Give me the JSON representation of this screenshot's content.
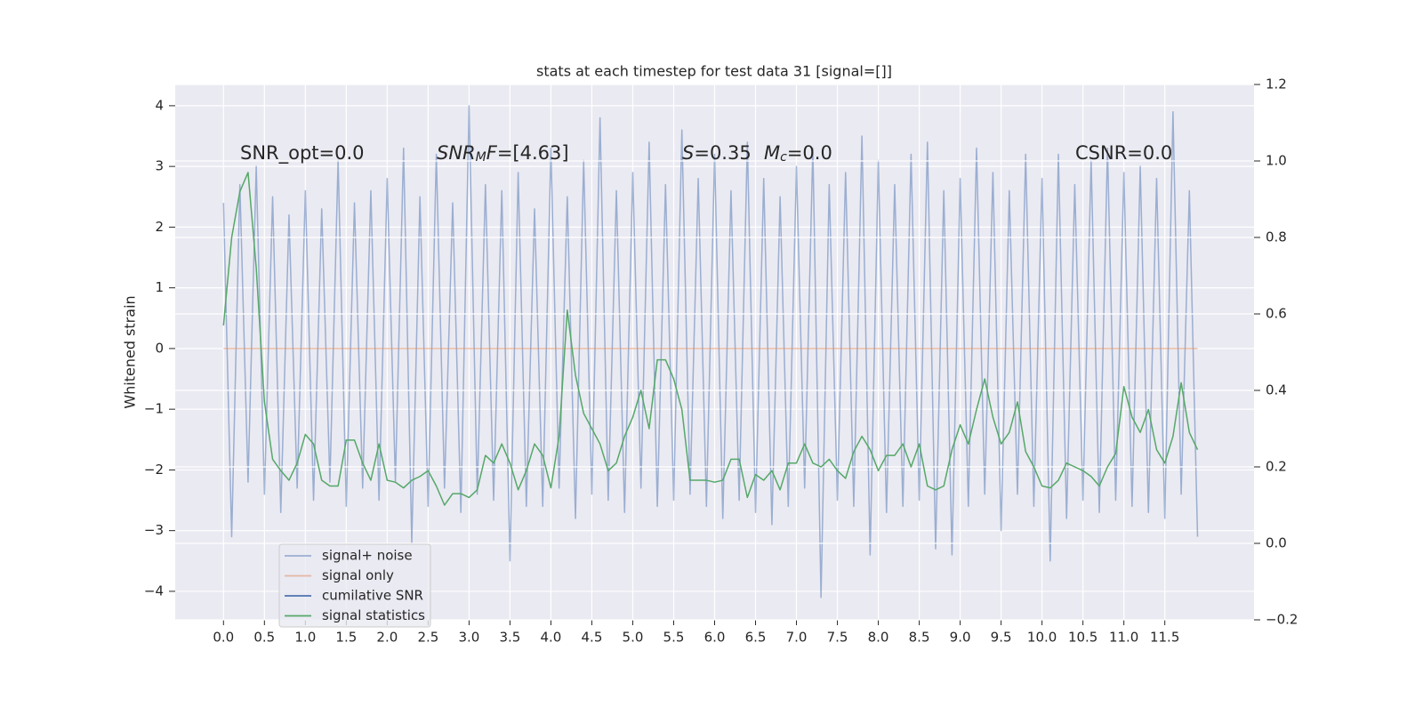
{
  "chart_data": {
    "type": "line",
    "title": "stats at each timestep for test data 31 [signal=[]]",
    "y_label": "Whitened strain",
    "annotations": [
      {
        "parts": [
          {
            "text": "SNR_opt=0.0"
          }
        ]
      },
      {
        "parts": [
          {
            "text": "SNR",
            "italic": true
          },
          {
            "text": "M",
            "italic": true,
            "sub": true
          },
          {
            "text": "F",
            "italic": true
          },
          {
            "text": "=[4.63]"
          }
        ]
      },
      {
        "parts": [
          {
            "text": "S",
            "italic": true
          },
          {
            "text": "=0.35"
          }
        ]
      },
      {
        "parts": [
          {
            "text": "M",
            "italic": true
          },
          {
            "text": "c",
            "italic": true,
            "sub": true
          },
          {
            "text": "=0.0"
          }
        ]
      },
      {
        "parts": [
          {
            "text": "CSNR=0.0"
          }
        ]
      }
    ],
    "x": [
      0,
      0.1,
      0.2,
      0.3,
      0.4,
      0.5,
      0.6,
      0.7,
      0.8,
      0.9,
      1,
      1.1,
      1.2,
      1.3,
      1.4,
      1.5,
      1.6,
      1.7,
      1.8,
      1.9,
      2,
      2.1,
      2.2,
      2.3,
      2.4,
      2.5,
      2.6,
      2.7,
      2.8,
      2.9,
      3,
      3.1,
      3.2,
      3.3,
      3.4,
      3.5,
      3.6,
      3.7,
      3.8,
      3.9,
      4,
      4.1,
      4.2,
      4.3,
      4.4,
      4.5,
      4.6,
      4.7,
      4.8,
      4.9,
      5,
      5.1,
      5.2,
      5.3,
      5.4,
      5.5,
      5.6,
      5.7,
      5.8,
      5.9,
      6,
      6.1,
      6.2,
      6.3,
      6.4,
      6.5,
      6.6,
      6.7,
      6.8,
      6.9,
      7,
      7.1,
      7.2,
      7.3,
      7.4,
      7.5,
      7.6,
      7.7,
      7.8,
      7.9,
      8,
      8.1,
      8.2,
      8.3,
      8.4,
      8.5,
      8.6,
      8.7,
      8.8,
      8.9,
      9,
      9.1,
      9.2,
      9.3,
      9.4,
      9.5,
      9.6,
      9.7,
      9.8,
      9.9,
      10,
      10.1,
      10.2,
      10.3,
      10.4,
      10.5,
      10.6,
      10.7,
      10.8,
      10.9,
      11,
      11.1,
      11.2,
      11.3,
      11.4,
      11.5,
      11.6,
      11.7,
      11.8,
      11.9
    ],
    "series": [
      {
        "name": "signal+ noise",
        "color": "#4c72b0",
        "opacity": 0.5,
        "values": [
          2.4,
          -3.1,
          2.7,
          -2.2,
          3.0,
          -2.4,
          2.5,
          -2.7,
          2.2,
          -2.3,
          2.6,
          -2.5,
          2.3,
          -2.2,
          3.1,
          -2.6,
          2.4,
          -2.3,
          2.6,
          -2.5,
          2.8,
          -2.2,
          3.3,
          -3.2,
          2.5,
          -2.6,
          3.2,
          -2.3,
          2.4,
          -2.7,
          4.0,
          -2.4,
          2.7,
          -2.5,
          2.6,
          -3.5,
          2.9,
          -2.6,
          2.3,
          -2.6,
          3.3,
          -2.3,
          2.5,
          -2.8,
          3.1,
          -2.4,
          3.8,
          -2.5,
          2.6,
          -2.7,
          2.9,
          -2.3,
          3.4,
          -2.6,
          2.7,
          -2.5,
          3.6,
          -2.4,
          2.8,
          -2.6,
          3.2,
          -2.8,
          2.6,
          -2.5,
          3.4,
          -2.7,
          2.8,
          -2.9,
          2.5,
          -2.6,
          3.0,
          -2.3,
          3.3,
          -4.1,
          2.7,
          -2.5,
          2.9,
          -2.6,
          3.5,
          -3.4,
          3.1,
          -2.7,
          2.7,
          -2.6,
          3.2,
          -2.5,
          3.4,
          -3.3,
          2.6,
          -3.4,
          2.8,
          -2.6,
          3.3,
          -2.4,
          2.9,
          -3.0,
          2.6,
          -2.4,
          3.2,
          -2.6,
          2.8,
          -3.5,
          3.2,
          -2.8,
          2.7,
          -2.5,
          3.1,
          -2.7,
          3.3,
          -2.5,
          2.9,
          -2.6,
          3.0,
          -2.7,
          2.8,
          -2.8,
          3.9,
          -2.4,
          2.6,
          -3.1
        ]
      },
      {
        "name": "signal only",
        "color": "#dd8452",
        "opacity": 0.5,
        "values": [
          0,
          0,
          0,
          0,
          0,
          0,
          0,
          0,
          0,
          0,
          0,
          0,
          0,
          0,
          0,
          0,
          0,
          0,
          0,
          0,
          0,
          0,
          0,
          0,
          0,
          0,
          0,
          0,
          0,
          0,
          0,
          0,
          0,
          0,
          0,
          0,
          0,
          0,
          0,
          0,
          0,
          0,
          0,
          0,
          0,
          0,
          0,
          0,
          0,
          0,
          0,
          0,
          0,
          0,
          0,
          0,
          0,
          0,
          0,
          0,
          0,
          0,
          0,
          0,
          0,
          0,
          0,
          0,
          0,
          0,
          0,
          0,
          0,
          0,
          0,
          0,
          0,
          0,
          0,
          0,
          0,
          0,
          0,
          0,
          0,
          0,
          0,
          0,
          0,
          0,
          0,
          0,
          0,
          0,
          0,
          0,
          0,
          0,
          0,
          0,
          0,
          0,
          0,
          0,
          0,
          0,
          0,
          0,
          0,
          0,
          0,
          0,
          0,
          0,
          0,
          0,
          0,
          0,
          0,
          0
        ]
      },
      {
        "name": "cumilative SNR",
        "color": "#4c72b0",
        "opacity": 1,
        "axis": "y2",
        "values": [
          null,
          null,
          null,
          null,
          null,
          null,
          null,
          null,
          null,
          null,
          null,
          null,
          null,
          null,
          null,
          null,
          null,
          null,
          null,
          null,
          null,
          null,
          null,
          null,
          null,
          null,
          null,
          null,
          null,
          null,
          null,
          null,
          null,
          null,
          null,
          null,
          null,
          null,
          null,
          null,
          null,
          null,
          null,
          null,
          null,
          null,
          null,
          null,
          null,
          null,
          null,
          null,
          null,
          null,
          null,
          null,
          null,
          null,
          null,
          null,
          null,
          null,
          null,
          null,
          null,
          null,
          null,
          null,
          null,
          null,
          null,
          null,
          null,
          null,
          null,
          null,
          null,
          null,
          null,
          null,
          null,
          null,
          null,
          null,
          null,
          null,
          null,
          null,
          null,
          null,
          null,
          null,
          null,
          null,
          null,
          null,
          null,
          null,
          null,
          null,
          null,
          null,
          null,
          null,
          null,
          null,
          null,
          null,
          null,
          null,
          null,
          null,
          null,
          null,
          null,
          null,
          null,
          null,
          null,
          null
        ]
      },
      {
        "name": "signal statistics",
        "color": "#55a868",
        "opacity": 1,
        "axis": "y2",
        "values": [
          0.57,
          0.8,
          0.92,
          0.97,
          0.72,
          0.37,
          0.22,
          0.19,
          0.165,
          0.21,
          0.285,
          0.26,
          0.165,
          0.15,
          0.15,
          0.27,
          0.27,
          0.21,
          0.165,
          0.26,
          0.165,
          0.16,
          0.145,
          0.165,
          0.175,
          0.19,
          0.15,
          0.1,
          0.13,
          0.13,
          0.12,
          0.14,
          0.23,
          0.21,
          0.26,
          0.21,
          0.14,
          0.19,
          0.26,
          0.23,
          0.145,
          0.28,
          0.61,
          0.44,
          0.34,
          0.3,
          0.26,
          0.19,
          0.21,
          0.28,
          0.33,
          0.4,
          0.3,
          0.48,
          0.48,
          0.43,
          0.35,
          0.165,
          0.165,
          0.165,
          0.16,
          0.165,
          0.22,
          0.22,
          0.12,
          0.18,
          0.165,
          0.19,
          0.14,
          0.21,
          0.21,
          0.26,
          0.21,
          0.2,
          0.22,
          0.19,
          0.17,
          0.24,
          0.28,
          0.245,
          0.19,
          0.23,
          0.23,
          0.26,
          0.2,
          0.26,
          0.15,
          0.14,
          0.15,
          0.245,
          0.31,
          0.26,
          0.35,
          0.43,
          0.33,
          0.26,
          0.29,
          0.37,
          0.24,
          0.2,
          0.15,
          0.145,
          0.165,
          0.21,
          0.2,
          0.19,
          0.175,
          0.15,
          0.2,
          0.235,
          0.41,
          0.33,
          0.29,
          0.35,
          0.245,
          0.21,
          0.28,
          0.42,
          0.29,
          0.245
        ]
      }
    ],
    "xlim": [
      -0.59,
      12.59
    ],
    "xticks": [
      {
        "value": 0,
        "label": "0.0"
      },
      0.5,
      {
        "value": 1,
        "label": "1.0"
      },
      1.5,
      {
        "value": 2,
        "label": "2.0"
      },
      2.5,
      {
        "value": 3,
        "label": "3.0"
      },
      3.5,
      {
        "value": 4,
        "label": "4.0"
      },
      4.5,
      {
        "value": 5,
        "label": "5.0"
      },
      5.5,
      {
        "value": 6,
        "label": "6.0"
      },
      6.5,
      {
        "value": 7,
        "label": "7.0"
      },
      7.5,
      {
        "value": 8,
        "label": "8.0"
      },
      8.5,
      {
        "value": 9,
        "label": "9.0"
      },
      9.5,
      {
        "value": 10,
        "label": "10.0"
      },
      10.5,
      {
        "value": 11,
        "label": "11.0"
      },
      11.5
    ],
    "ylim": [
      -4.47,
      4.35
    ],
    "yticks": [
      {
        "value": -4,
        "label": "−4"
      },
      {
        "value": -3,
        "label": "−3"
      },
      {
        "value": -2,
        "label": "−2"
      },
      {
        "value": -1,
        "label": "−1"
      },
      0,
      1,
      2,
      3,
      4
    ],
    "y2lim": [
      -0.2,
      1.2
    ],
    "y2ticks": [
      {
        "value": -0.2,
        "label": "−0.2"
      },
      {
        "value": 0,
        "label": "0.0"
      },
      0.2,
      0.4,
      0.6,
      0.8,
      {
        "value": 1,
        "label": "1.0"
      },
      1.2
    ],
    "grid": true,
    "legend": "lower left"
  }
}
